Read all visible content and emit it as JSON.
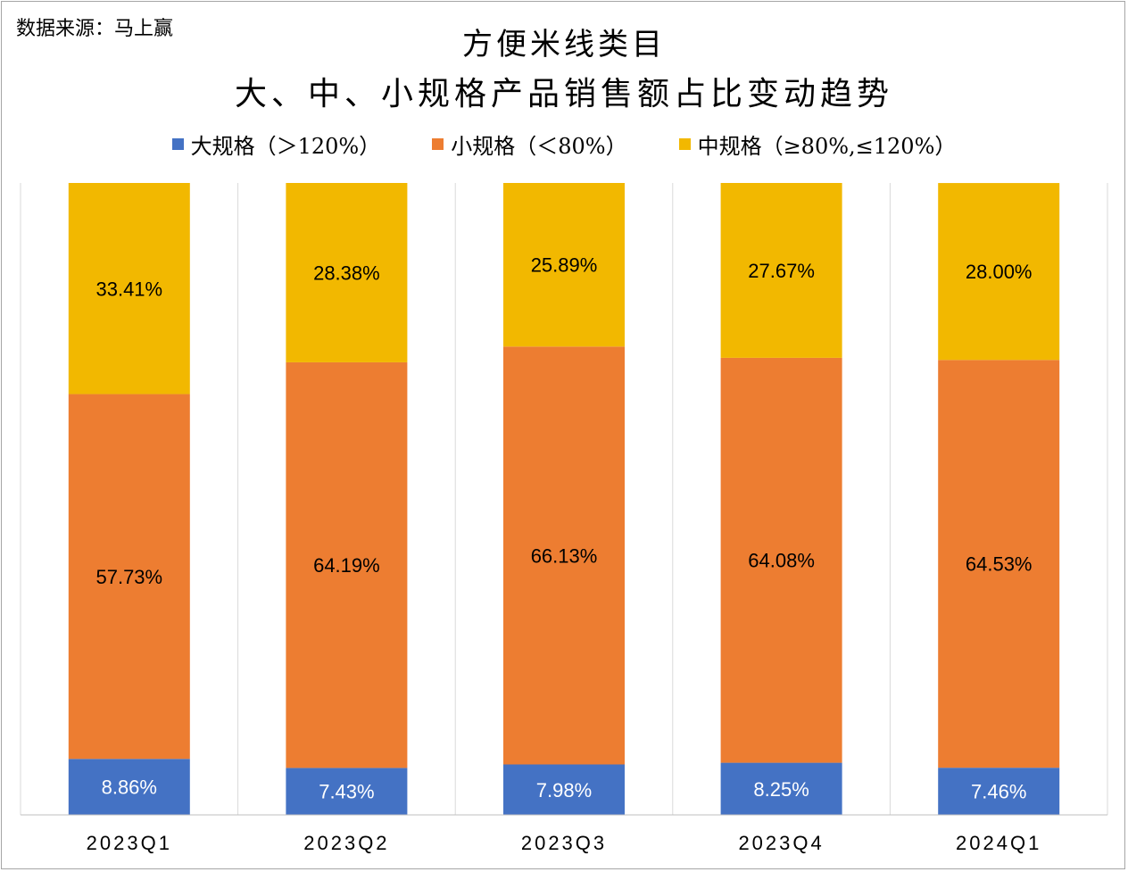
{
  "source_note": "数据来源：马上赢",
  "chart_data": {
    "type": "bar",
    "stacked": true,
    "title_line1": "方便米线类目",
    "title_line2": "大、中、小规格产品销售额占比变动趋势",
    "categories": [
      "2023Q1",
      "2023Q2",
      "2023Q3",
      "2023Q4",
      "2024Q1"
    ],
    "series": [
      {
        "name": "大规格（＞120%）",
        "color": "#4472c4",
        "values": [
          8.86,
          7.43,
          7.98,
          8.25,
          7.46
        ],
        "labels": [
          "8.86%",
          "7.43%",
          "7.98%",
          "8.25%",
          "7.46%"
        ]
      },
      {
        "name": "小规格（＜80%）",
        "color": "#ed7d31",
        "values": [
          57.73,
          64.19,
          66.13,
          64.08,
          64.53
        ],
        "labels": [
          "57.73%",
          "64.19%",
          "66.13%",
          "64.08%",
          "64.53%"
        ]
      },
      {
        "name": "中规格（≥80%,≤120%）",
        "color": "#f2b800",
        "values": [
          33.41,
          28.38,
          25.89,
          27.67,
          28.0
        ],
        "labels": [
          "33.41%",
          "28.38%",
          "25.89%",
          "27.67%",
          "28.00%"
        ]
      }
    ],
    "ylim": [
      0,
      100
    ],
    "grid": false,
    "legend_position": "top"
  }
}
